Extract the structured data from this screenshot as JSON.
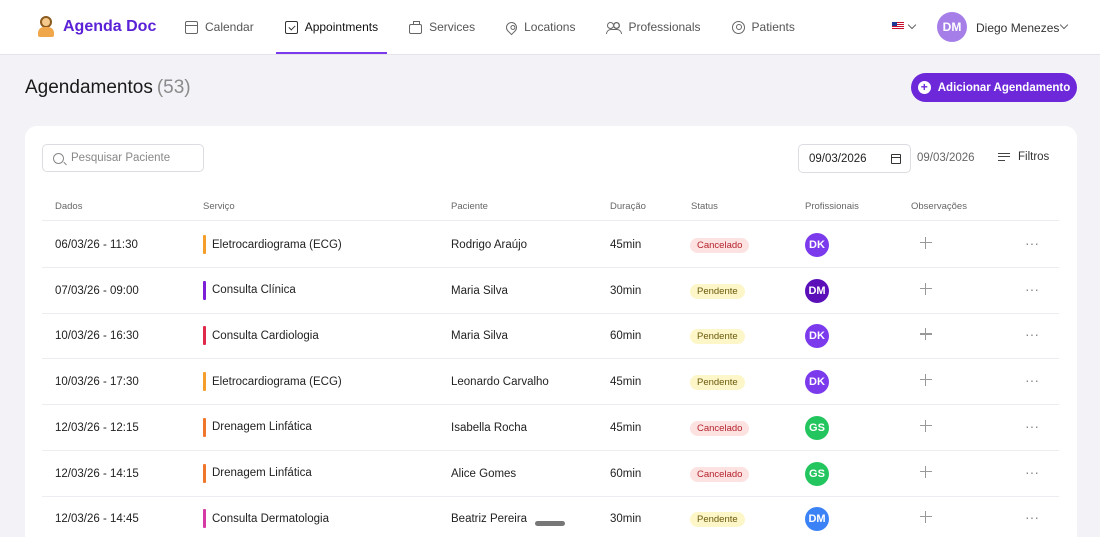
{
  "app": {
    "name": "Agenda Doc"
  },
  "nav": [
    {
      "label": "Calendar",
      "icon": "calendar-icon",
      "active": false
    },
    {
      "label": "Appointments",
      "icon": "calendar-check-icon",
      "active": true
    },
    {
      "label": "Services",
      "icon": "briefcase-icon",
      "active": false
    },
    {
      "label": "Locations",
      "icon": "map-pin-icon",
      "active": false
    },
    {
      "label": "Professionals",
      "icon": "users-icon",
      "active": false
    },
    {
      "label": "Patients",
      "icon": "user-circle-icon",
      "active": false
    }
  ],
  "user": {
    "initials": "DM",
    "name": "Diego Menezes",
    "avatar_color": "#a57ee8"
  },
  "language": {
    "flag": "us-flag-icon"
  },
  "page": {
    "title": "Agendamentos",
    "count": "(53)",
    "add_label": "Adicionar Agendamento"
  },
  "filters": {
    "search_placeholder": "Pesquisar Paciente",
    "date_start": "09/03/2026",
    "date_end": "09/03/2026",
    "filters_label": "Filtros"
  },
  "table": {
    "headers": {
      "date": "Dados",
      "service": "Serviço",
      "patient": "Paciente",
      "duration": "Duração",
      "status": "Status",
      "professionals": "Profissionais",
      "notes": "Observações"
    },
    "rows": [
      {
        "date": "06/03/26 - 11:30",
        "service": "Eletrocardiograma (ECG)",
        "service_color": "#f59e2b",
        "patient": "Rodrigo Araújo",
        "duration": "45min",
        "status": "Cancelado",
        "status_kind": "cancel",
        "pro": "DK",
        "pro_color": "#7c3aed"
      },
      {
        "date": "07/03/26 - 09:00",
        "service": "Consulta Clínica",
        "service_color": "#7c1fd6",
        "patient": "Maria Silva",
        "duration": "30min",
        "status": "Pendente",
        "status_kind": "pend",
        "pro": "DM",
        "pro_color": "#5b0fb8"
      },
      {
        "date": "10/03/26 - 16:30",
        "service": "Consulta Cardiologia",
        "service_color": "#e0294a",
        "patient": "Maria Silva",
        "duration": "60min",
        "status": "Pendente",
        "status_kind": "pend",
        "pro": "DK",
        "pro_color": "#7c3aed"
      },
      {
        "date": "10/03/26 - 17:30",
        "service": "Eletrocardiograma (ECG)",
        "service_color": "#f59e2b",
        "patient": "Leonardo Carvalho",
        "duration": "45min",
        "status": "Pendente",
        "status_kind": "pend",
        "pro": "DK",
        "pro_color": "#7c3aed"
      },
      {
        "date": "12/03/26 - 12:15",
        "service": "Drenagem Linfática",
        "service_color": "#f0762b",
        "patient": "Isabella Rocha",
        "duration": "45min",
        "status": "Cancelado",
        "status_kind": "cancel",
        "pro": "GS",
        "pro_color": "#22c55e"
      },
      {
        "date": "12/03/26 - 14:15",
        "service": "Drenagem Linfática",
        "service_color": "#f0762b",
        "patient": "Alice Gomes",
        "duration": "60min",
        "status": "Cancelado",
        "status_kind": "cancel",
        "pro": "GS",
        "pro_color": "#22c55e"
      },
      {
        "date": "12/03/26 - 14:45",
        "service": "Consulta Dermatologia",
        "service_color": "#d63aa6",
        "patient": "Beatriz Pereira",
        "duration": "30min",
        "status": "Pendente",
        "status_kind": "pend",
        "pro": "DM",
        "pro_color": "#3b82f6"
      }
    ]
  }
}
